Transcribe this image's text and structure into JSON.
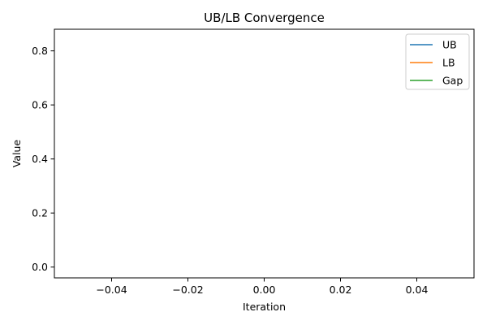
{
  "chart_data": {
    "type": "line",
    "title": "UB/LB Convergence",
    "xlabel": "Iteration",
    "ylabel": "Value",
    "xlim": [
      -0.055,
      0.055
    ],
    "ylim": [
      -0.04,
      0.88
    ],
    "x_ticks": [
      -0.04,
      -0.02,
      0.0,
      0.02,
      0.04
    ],
    "x_tick_labels": [
      "−0.04",
      "−0.02",
      "0.00",
      "0.02",
      "0.04"
    ],
    "y_ticks": [
      0.0,
      0.2,
      0.4,
      0.6,
      0.8
    ],
    "y_tick_labels": [
      "0.0",
      "0.2",
      "0.4",
      "0.6",
      "0.8"
    ],
    "grid": false,
    "legend_position": "top-right",
    "series": [
      {
        "name": "UB",
        "color": "#1f77b4",
        "x": [],
        "y": []
      },
      {
        "name": "LB",
        "color": "#ff7f0e",
        "x": [],
        "y": []
      },
      {
        "name": "Gap",
        "color": "#2ca02c",
        "x": [],
        "y": []
      }
    ]
  }
}
